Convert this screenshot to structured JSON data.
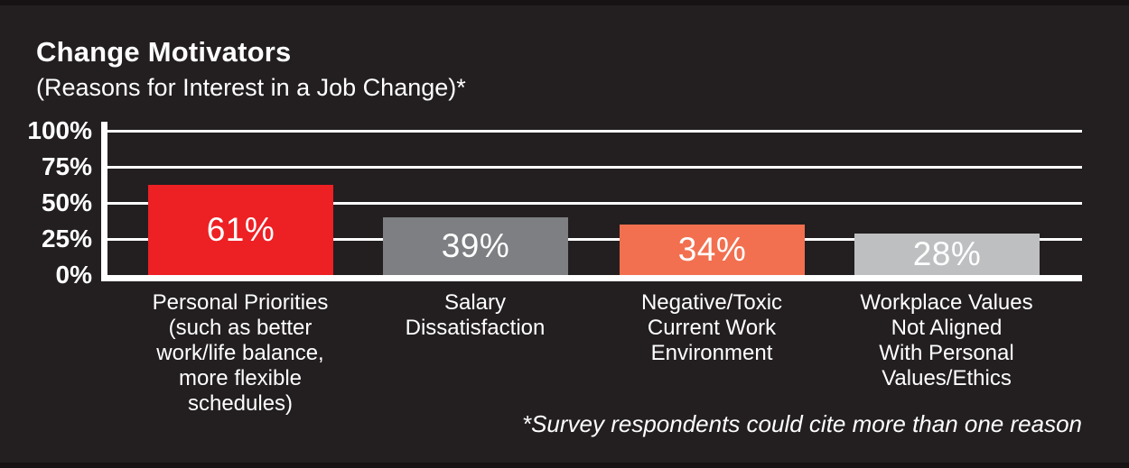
{
  "title": "Change Motivators",
  "subtitle": "(Reasons for Interest in a Job Change)*",
  "footnote": "*Survey respondents could cite more than one reason",
  "colors": {
    "background": "#231f20",
    "text": "#ffffff",
    "axis": "#ffffff",
    "gridline": "#ffffff"
  },
  "chart_data": {
    "type": "bar",
    "title": "Change Motivators",
    "subtitle": "(Reasons for Interest in a Job Change)*",
    "categories": [
      "Personal Priorities (such as better work/life balance, more flexible schedules)",
      "Salary Dissatisfaction",
      "Negative/Toxic Current Work Environment",
      "Workplace Values Not Aligned With Personal Values/Ethics"
    ],
    "category_lines": [
      [
        "Personal Priorities",
        "(such as better",
        "work/life balance,",
        "more flexible",
        "schedules)"
      ],
      [
        "Salary",
        "Dissatisfaction"
      ],
      [
        "Negative/Toxic",
        "Current Work",
        "Environment"
      ],
      [
        "Workplace Values",
        "Not Aligned",
        "With Personal",
        "Values/Ethics"
      ]
    ],
    "values": [
      61,
      39,
      34,
      28
    ],
    "value_labels": [
      "61%",
      "39%",
      "34%",
      "28%"
    ],
    "bar_colors": [
      "#ed2024",
      "#7d7f82",
      "#f2704f",
      "#bdbfc1"
    ],
    "y_ticks": [
      {
        "label": "100%",
        "value": 100
      },
      {
        "label": "75%",
        "value": 75
      },
      {
        "label": "50%",
        "value": 50
      },
      {
        "label": "25%",
        "value": 25
      },
      {
        "label": "0%",
        "value": 0
      }
    ],
    "ylim": [
      0,
      100
    ],
    "xlabel": "",
    "ylabel": "",
    "grid": true,
    "legend": false,
    "annotations": [
      "*Survey respondents could cite more than one reason"
    ]
  }
}
